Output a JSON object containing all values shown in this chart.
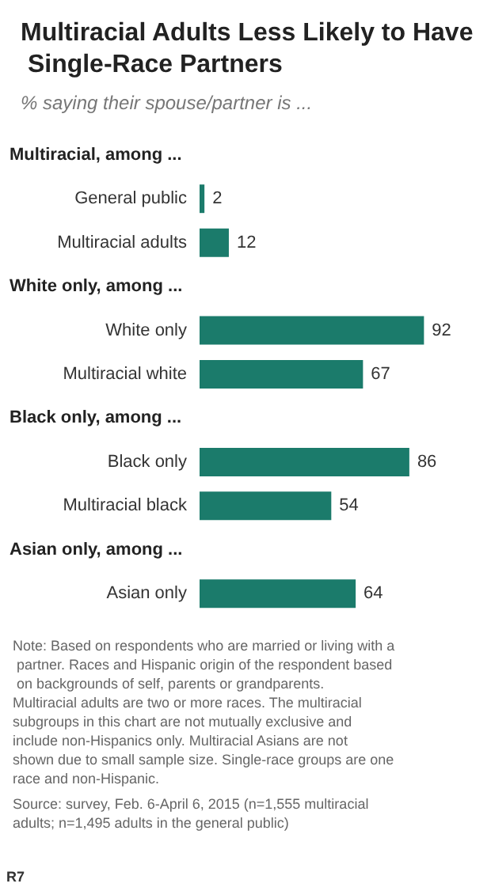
{
  "chart_data": {
    "type": "bar",
    "orientation": "horizontal",
    "title": "Multiracial Adults Less Likely to Have Single-Race Partners",
    "subtitle": "% saying their spouse/partner is ...",
    "categories": [
      "Multiracial, among ...",
      "General public",
      "Multiracial adults",
      "White only, among ...",
      "White only",
      "Multiracial white",
      "Black only, among ...",
      "Black only",
      "Multiracial black",
      "Asian only, among ...",
      "Asian only"
    ],
    "values": [
      null,
      2,
      12,
      null,
      92,
      67,
      null,
      86,
      54,
      null,
      64
    ],
    "color": "#1b7b6b",
    "data_labels": true,
    "annotations": [
      "Note: Based on respondents who are married or living with a partner. Races and Hispanic origin of the respondent based on backgrounds of self, parents or grandparents. Multiracial adults are two or more races. The multiracial subgroups in this chart are not mutually exclusive and include non-Hispanics only. Multiracial Asians are not shown due to small sample size. Single-race groups are one race and non-Hispanic.",
      "Source: survey, Feb. 6-April 6, 2015 (n=1,555 multiracial adults; n=1,495 adults in the general public)",
      "R7"
    ]
  }
}
